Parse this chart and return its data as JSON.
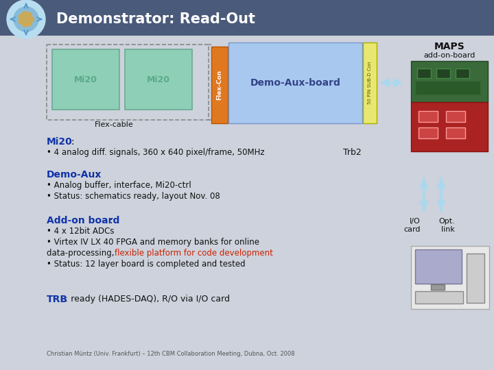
{
  "title": "Demonstrator: Read-Out",
  "title_bg": "#4a5a7a",
  "title_color": "#ffffff",
  "bg_color": "#cdd2dc",
  "mi20_color": "#8ecfb8",
  "mi20_border": "#6aab90",
  "mi20_text_color": "#5aaa88",
  "flex_con_color": "#e07820",
  "demo_aux_color": "#a8c8f0",
  "sub_d_color": "#e8e870",
  "dashed_box_color": "#888888",
  "blue_heading": "#1133aa",
  "red_text": "#cc2200",
  "dark_text": "#111111",
  "gray_text": "#444444",
  "footer_text": "Christian Müntz (Univ. Frankfurt) – 12th CBM Collaboration Meeting, Dubna, Oct. 2008",
  "mi20_label": "Mi20",
  "flex_cable_label": "Flex-cable",
  "flex_con_label": "Flex-Con",
  "demo_aux_label": "Demo-Aux-board",
  "sub_d_label": "50 PIN SUB-D Con",
  "maps_title": "MAPS",
  "maps_subtitle": "add-on-board",
  "trb2_label": "Trb2",
  "arrow_color": "#aad8ee",
  "io_arrow_color": "#aad8ee"
}
